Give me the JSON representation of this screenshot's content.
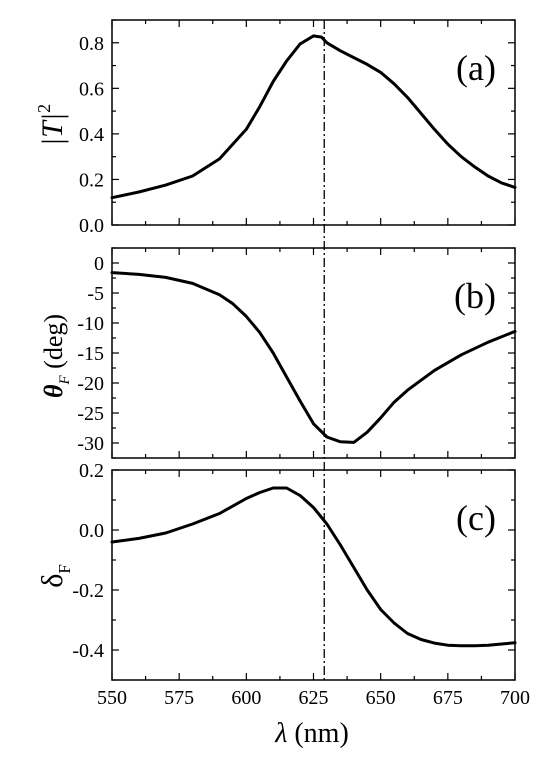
{
  "chart_data": [
    {
      "type": "line",
      "panel_label": "(a)",
      "ylabel": "|T|",
      "ylabel_superscript": "2",
      "xlim": [
        550,
        700
      ],
      "ylim": [
        0.0,
        0.9
      ],
      "yticks": [
        0.0,
        0.2,
        0.4,
        0.6,
        0.8
      ],
      "ytick_labels": [
        "0.0",
        "0.2",
        "0.4",
        "0.6",
        "0.8"
      ],
      "series": [
        {
          "x": [
            550,
            560,
            570,
            580,
            590,
            600,
            605,
            610,
            615,
            620,
            625,
            628,
            630,
            635,
            640,
            645,
            650,
            655,
            660,
            665,
            670,
            675,
            680,
            685,
            690,
            695,
            700
          ],
          "y": [
            0.12,
            0.145,
            0.175,
            0.215,
            0.29,
            0.42,
            0.52,
            0.63,
            0.72,
            0.795,
            0.83,
            0.825,
            0.8,
            0.765,
            0.735,
            0.705,
            0.67,
            0.62,
            0.56,
            0.49,
            0.42,
            0.355,
            0.3,
            0.255,
            0.215,
            0.185,
            0.165
          ]
        }
      ],
      "vline_x": 629
    },
    {
      "type": "line",
      "panel_label": "(b)",
      "ylabel_symbol": "θ",
      "ylabel_subscript": "F",
      "ylabel_suffix": " (deg)",
      "xlim": [
        550,
        700
      ],
      "ylim": [
        -32.5,
        2.5
      ],
      "yticks": [
        0,
        -5,
        -10,
        -15,
        -20,
        -25,
        -30
      ],
      "ytick_labels": [
        "0",
        "-5",
        "-10",
        "-15",
        "-20",
        "-25",
        "-30"
      ],
      "series": [
        {
          "x": [
            550,
            560,
            570,
            580,
            590,
            595,
            600,
            605,
            610,
            615,
            620,
            625,
            630,
            635,
            640,
            645,
            650,
            655,
            660,
            670,
            680,
            690,
            700
          ],
          "y": [
            -1.6,
            -1.9,
            -2.4,
            -3.4,
            -5.3,
            -6.8,
            -8.9,
            -11.6,
            -15.0,
            -19.0,
            -23.0,
            -26.8,
            -29.0,
            -29.8,
            -29.9,
            -28.2,
            -25.8,
            -23.2,
            -21.2,
            -17.9,
            -15.3,
            -13.2,
            -11.4
          ]
        }
      ],
      "vline_x": 629
    },
    {
      "type": "line",
      "panel_label": "(c)",
      "ylabel": "δ",
      "ylabel_subscript": "F",
      "xlabel_symbol": "λ",
      "xlabel_suffix": " (nm)",
      "xlim": [
        550,
        700
      ],
      "ylim": [
        -0.5,
        0.2
      ],
      "xticks": [
        550,
        575,
        600,
        625,
        650,
        675,
        700
      ],
      "xtick_labels": [
        "550",
        "575",
        "600",
        "625",
        "650",
        "675",
        "700"
      ],
      "yticks": [
        0.2,
        0.0,
        -0.2,
        -0.4
      ],
      "ytick_labels": [
        "0.2",
        "0.0",
        "-0.2",
        "-0.4"
      ],
      "series": [
        {
          "x": [
            550,
            560,
            570,
            580,
            590,
            600,
            605,
            610,
            615,
            620,
            625,
            630,
            635,
            640,
            645,
            650,
            655,
            660,
            665,
            670,
            675,
            680,
            685,
            690,
            695,
            700
          ],
          "y": [
            -0.04,
            -0.028,
            -0.01,
            0.02,
            0.055,
            0.105,
            0.125,
            0.14,
            0.14,
            0.115,
            0.075,
            0.02,
            -0.05,
            -0.125,
            -0.2,
            -0.265,
            -0.31,
            -0.345,
            -0.365,
            -0.377,
            -0.384,
            -0.386,
            -0.386,
            -0.384,
            -0.38,
            -0.376
          ]
        }
      ],
      "vline_x": 629
    }
  ]
}
